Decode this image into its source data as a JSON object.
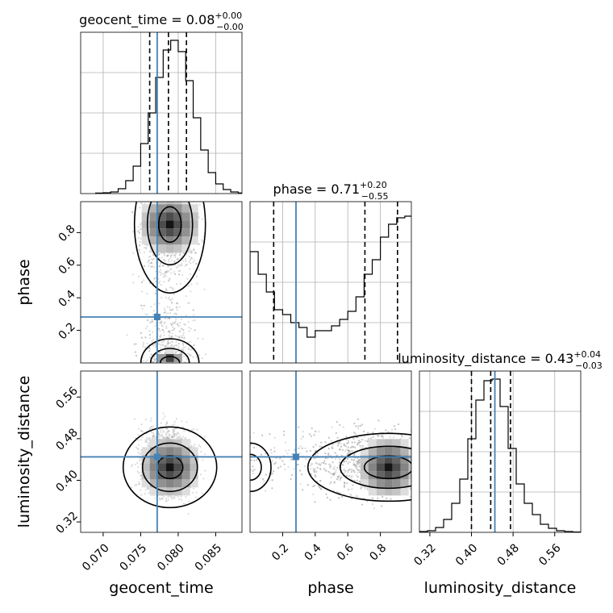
{
  "chart_data": {
    "type": "corner",
    "parameters": [
      "geocent_time",
      "phase",
      "luminosity_distance"
    ],
    "truth": {
      "geocent_time": 0.0772,
      "phase": 0.282,
      "luminosity_distance": 0.445
    },
    "ranges": {
      "geocent_time": [
        0.067,
        0.0885
      ],
      "phase": [
        0.0,
        0.99
      ],
      "luminosity_distance": [
        0.3,
        0.61
      ]
    },
    "ticks": {
      "geocent_time": [
        "0.070",
        "0.075",
        "0.080",
        "0.085"
      ],
      "phase": [
        "0.2",
        "0.4",
        "0.6",
        "0.8"
      ],
      "luminosity_distance": [
        "0.32",
        "0.40",
        "0.48",
        "0.56"
      ]
    },
    "axis_labels": {
      "x": [
        "geocent_time",
        "phase",
        "luminosity_distance"
      ],
      "y": [
        "phase",
        "luminosity_distance"
      ]
    },
    "titles": [
      {
        "param": "geocent_time",
        "text": "geocent_time = 0.08",
        "sup": "+0.00",
        "sub": "−0.00"
      },
      {
        "param": "phase",
        "text": "phase = 0.71",
        "sup": "+0.20",
        "sub": "−0.55"
      },
      {
        "param": "luminosity_distance",
        "text": "luminosity_distance = 0.43",
        "sup": "+0.04",
        "sub": "−0.03"
      }
    ],
    "quantiles": {
      "geocent_time": [
        0.0762,
        0.0787,
        0.0811
      ],
      "phase": [
        0.145,
        0.705,
        0.905
      ],
      "luminosity_distance": [
        0.4,
        0.437,
        0.475
      ]
    },
    "histograms": {
      "geocent_time": {
        "start": 0.069,
        "step": 0.001,
        "values": [
          0.003,
          0.005,
          0.01,
          0.03,
          0.08,
          0.17,
          0.31,
          0.5,
          0.72,
          0.89,
          0.95,
          0.88,
          0.7,
          0.47,
          0.27,
          0.13,
          0.06,
          0.025,
          0.01,
          0.004
        ]
      },
      "phase": {
        "start": 0.0,
        "step": 0.05,
        "values": [
          0.69,
          0.55,
          0.44,
          0.33,
          0.3,
          0.25,
          0.22,
          0.16,
          0.2,
          0.2,
          0.23,
          0.27,
          0.32,
          0.41,
          0.55,
          0.64,
          0.78,
          0.86,
          0.9,
          0.91,
          0.76
        ]
      },
      "luminosity_distance": {
        "start": 0.3,
        "step": 0.0155,
        "values": [
          0.005,
          0.01,
          0.03,
          0.08,
          0.18,
          0.33,
          0.58,
          0.82,
          0.94,
          0.95,
          0.78,
          0.52,
          0.3,
          0.18,
          0.11,
          0.05,
          0.025,
          0.01,
          0.005,
          0.002
        ]
      }
    },
    "grid": true
  }
}
